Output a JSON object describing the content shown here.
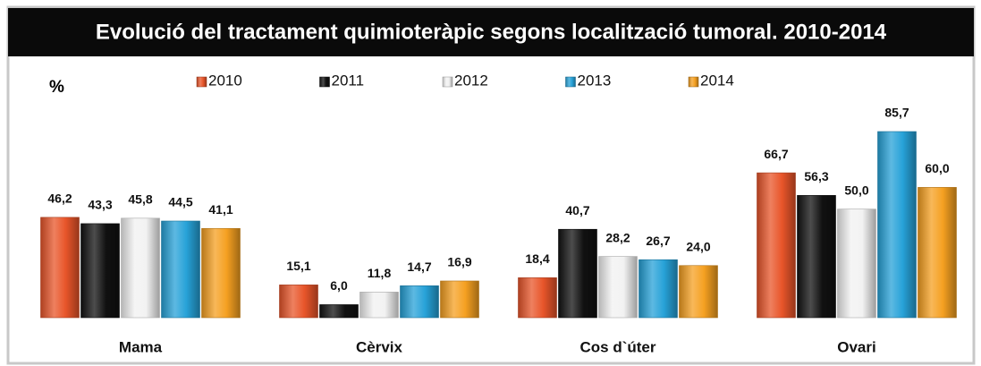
{
  "chart_data": {
    "type": "bar",
    "title": "Evolució del tractament quimioteràpic  segons localització tumoral. 2010-2014",
    "y_label": "%",
    "categories": [
      "Mama",
      "Cèrvix",
      "Cos d`úter",
      "Ovari"
    ],
    "series": [
      {
        "name": "2010",
        "color": "#e8552a",
        "values": [
          46.2,
          15.1,
          18.4,
          66.7
        ],
        "value_labels": [
          "46,2",
          "15,1",
          "18,4",
          "66,7"
        ]
      },
      {
        "name": "2011",
        "color": "#111111",
        "values": [
          43.3,
          6.0,
          40.7,
          56.3
        ],
        "value_labels": [
          "43,3",
          "6,0",
          "40,7",
          "56,3"
        ]
      },
      {
        "name": "2012",
        "color": "#f2f2f2",
        "values": [
          45.8,
          11.8,
          28.2,
          50.0
        ],
        "value_labels": [
          "45,8",
          "11,8",
          "28,2",
          "50,0"
        ]
      },
      {
        "name": "2013",
        "color": "#27a2d8",
        "values": [
          44.5,
          14.7,
          26.7,
          85.7
        ],
        "value_labels": [
          "44,5",
          "14,7",
          "26,7",
          "85,7"
        ]
      },
      {
        "name": "2014",
        "color": "#f5a021",
        "values": [
          41.1,
          16.9,
          24.0,
          60.0
        ],
        "value_labels": [
          "41,1",
          "16,9",
          "24,0",
          "60,0"
        ]
      }
    ]
  }
}
